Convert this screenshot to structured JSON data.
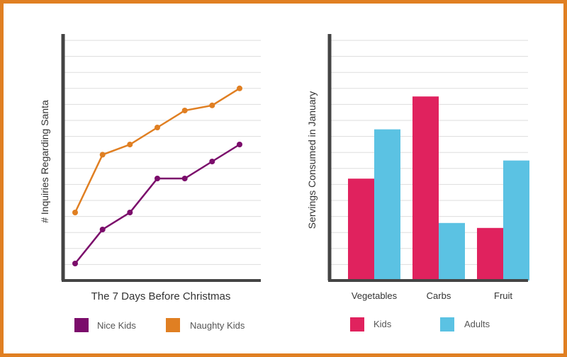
{
  "chart_data": [
    {
      "type": "line",
      "title": "",
      "xlabel": "The 7 Days Before Christmas",
      "ylabel": "# Inquiries Regarding Santa",
      "x": [
        1,
        2,
        3,
        4,
        5,
        6,
        7
      ],
      "ylim": [
        0,
        14.5
      ],
      "grid": true,
      "legend_position": "bottom",
      "series": [
        {
          "name": "Nice Kids",
          "color": "#7b0c6b",
          "values": [
            1,
            3,
            4,
            6,
            6,
            7,
            8
          ]
        },
        {
          "name": "Naughty Kids",
          "color": "#e07f22",
          "values": [
            4,
            7.4,
            8,
            9,
            10,
            10.3,
            11.3
          ]
        }
      ]
    },
    {
      "type": "bar",
      "title": "",
      "xlabel": "",
      "ylabel": "Servings Consumed in January",
      "categories": [
        "Vegetables",
        "Carbs",
        "Fruit"
      ],
      "ylim": [
        0,
        15
      ],
      "grid": true,
      "legend_position": "bottom",
      "series": [
        {
          "name": "Kids",
          "color": "#e0225e",
          "values": [
            6.2,
            11.2,
            3.2
          ]
        },
        {
          "name": "Adults",
          "color": "#5bc2e3",
          "values": [
            9.2,
            3.5,
            7.3
          ]
        }
      ]
    }
  ]
}
